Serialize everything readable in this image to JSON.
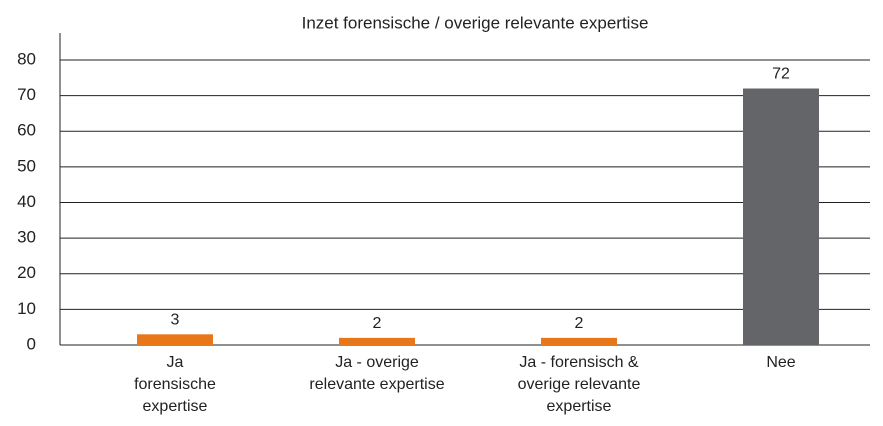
{
  "chart_data": {
    "type": "bar",
    "title": "Inzet forensische / overige relevante expertise",
    "categories": [
      "Ja\nforensische\nexpertise",
      "Ja - overige\nrelevante expertise",
      "Ja - forensisch &\noverige relevante\nexpertise",
      "Nee"
    ],
    "values": [
      3,
      2,
      2,
      72
    ],
    "colors": [
      "#e8771a",
      "#e8771a",
      "#e8771a",
      "#636569"
    ],
    "ylim": [
      0,
      80
    ],
    "yticks": [
      0,
      10,
      20,
      30,
      40,
      50,
      60,
      70,
      80
    ],
    "grid": true
  }
}
